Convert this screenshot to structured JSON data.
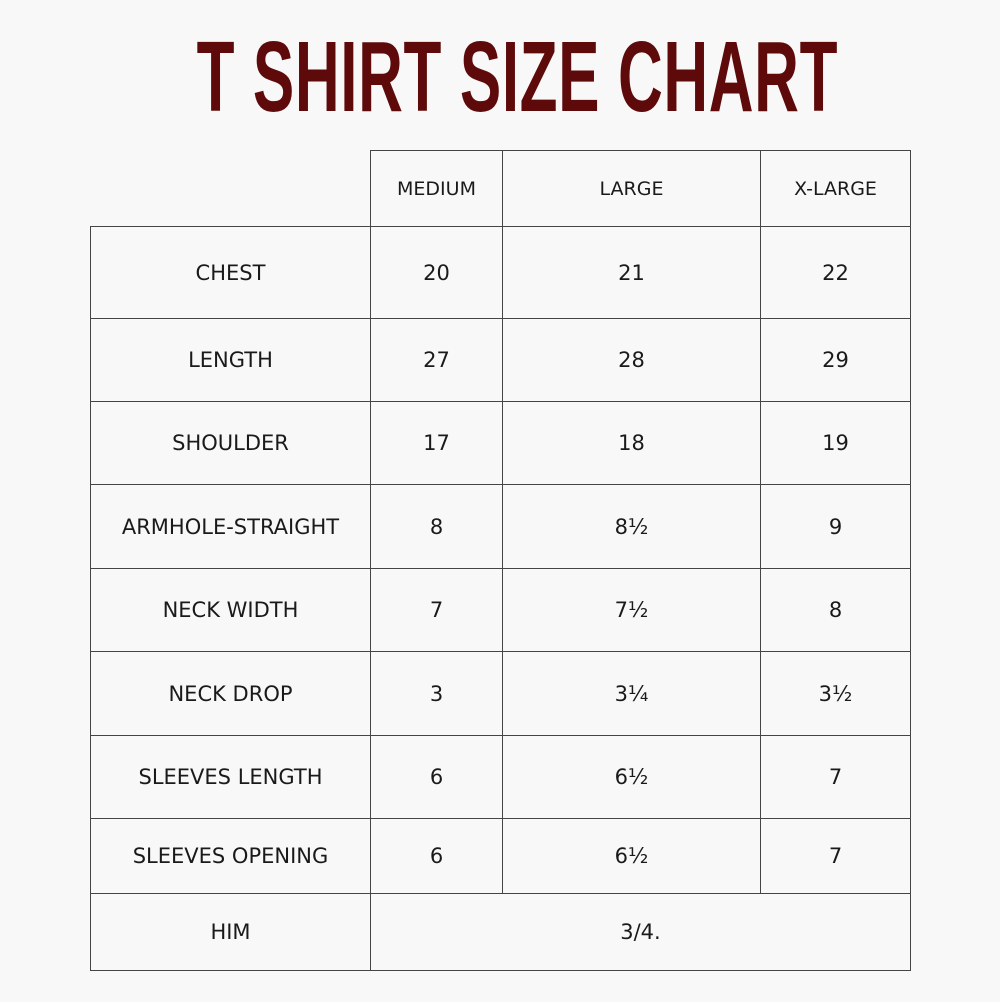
{
  "title": "T SHIRT SIZE CHART",
  "colors": {
    "title": "#5e0a0a",
    "border": "#444444",
    "background": "#f8f8f8"
  },
  "columns": [
    "MEDIUM",
    "LARGE",
    "X-LARGE"
  ],
  "rows": [
    {
      "label": "CHEST",
      "values": [
        "20",
        "21",
        "22"
      ]
    },
    {
      "label": "LENGTH",
      "values": [
        "27",
        "28",
        "29"
      ]
    },
    {
      "label": "SHOULDER",
      "values": [
        "17",
        "18",
        "19"
      ]
    },
    {
      "label": "ARMHOLE-STRAIGHT",
      "values": [
        "8",
        "8½",
        "9"
      ]
    },
    {
      "label": "NECK WIDTH",
      "values": [
        "7",
        "7½",
        "8"
      ]
    },
    {
      "label": "NECK DROP",
      "values": [
        "3",
        "3¼",
        "3½"
      ]
    },
    {
      "label": "SLEEVES LENGTH",
      "values": [
        "6",
        "6½",
        "7"
      ]
    },
    {
      "label": "SLEEVES OPENING",
      "values": [
        "6",
        "6½",
        "7"
      ]
    }
  ],
  "footer_row": {
    "label": "HIM",
    "value": "3/4."
  }
}
